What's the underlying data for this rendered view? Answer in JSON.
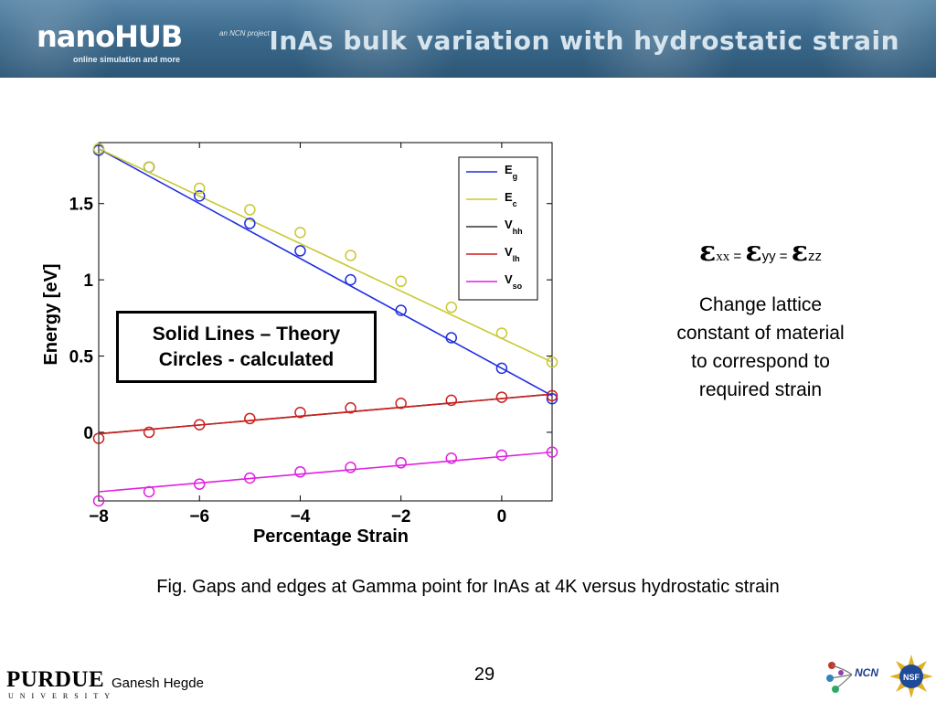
{
  "header": {
    "logo_main": "nanoHUB",
    "logo_tagline": "online simulation and more",
    "logo_partner": "an NCN project",
    "title": "InAs bulk variation with hydrostatic strain"
  },
  "chart_data": {
    "type": "line",
    "xlabel": "Percentage Strain",
    "ylabel": "Energy [eV]",
    "xlim": [
      -8,
      1
    ],
    "ylim": [
      -0.45,
      1.9
    ],
    "xticks": [
      -8,
      -6,
      -4,
      -2,
      0
    ],
    "xtick_labels": [
      "−8",
      "−6",
      "−4",
      "−2",
      "0"
    ],
    "yticks": [
      0,
      0.5,
      1,
      1.5
    ],
    "ytick_labels": [
      "0",
      "0.5",
      "1",
      "1.5"
    ],
    "grid": false,
    "legend_position": "top-right",
    "series": [
      {
        "name": "E",
        "sub": "g",
        "color": "#1f2ee0",
        "theory": [
          [
            -8,
            1.86
          ],
          [
            1,
            0.24
          ]
        ],
        "calculated": {
          "x": [
            -8,
            -7,
            -6,
            -5,
            -4,
            -3,
            -2,
            -1,
            0,
            1
          ],
          "y": [
            1.85,
            1.74,
            1.55,
            1.37,
            1.19,
            1.0,
            0.8,
            0.62,
            0.42,
            0.22
          ]
        }
      },
      {
        "name": "E",
        "sub": "c",
        "color": "#c8c832",
        "theory": [
          [
            -8,
            1.86
          ],
          [
            1,
            0.46
          ]
        ],
        "calculated": {
          "x": [
            -8,
            -7,
            -6,
            -5,
            -4,
            -3,
            -2,
            -1,
            0,
            1
          ],
          "y": [
            1.86,
            1.74,
            1.6,
            1.46,
            1.31,
            1.16,
            0.99,
            0.82,
            0.65,
            0.46
          ]
        }
      },
      {
        "name": "V",
        "sub": "hh",
        "color": "#333333",
        "theory": [
          [
            -8,
            -0.01
          ],
          [
            1,
            0.25
          ]
        ],
        "calculated": {
          "x": [],
          "y": []
        }
      },
      {
        "name": "V",
        "sub": "lh",
        "color": "#cc1f1f",
        "theory": [
          [
            -8,
            -0.01
          ],
          [
            1,
            0.25
          ]
        ],
        "calculated": {
          "x": [
            -8,
            -7,
            -6,
            -5,
            -4,
            -3,
            -2,
            -1,
            0,
            1
          ],
          "y": [
            -0.04,
            0.0,
            0.05,
            0.09,
            0.13,
            0.16,
            0.19,
            0.21,
            0.23,
            0.24
          ]
        }
      },
      {
        "name": "V",
        "sub": "so",
        "color": "#e020e0",
        "theory": [
          [
            -8,
            -0.39
          ],
          [
            1,
            -0.13
          ]
        ],
        "calculated": {
          "x": [
            -8,
            -7,
            -6,
            -5,
            -4,
            -3,
            -2,
            -1,
            0,
            1
          ],
          "y": [
            -0.45,
            -0.39,
            -0.34,
            -0.3,
            -0.26,
            -0.23,
            -0.2,
            -0.17,
            -0.15,
            -0.13
          ]
        }
      }
    ]
  },
  "annotation_box": {
    "line1": "Solid Lines – Theory",
    "line2": "Circles - calculated"
  },
  "strain_equation": {
    "epsilon": "ε",
    "xx": "xx",
    "yy": "yy",
    "zz": "zz",
    "equals": " = "
  },
  "description": {
    "line1": "Change lattice",
    "line2": "constant of material",
    "line3": "to correspond to",
    "line4": "required strain"
  },
  "caption": "Fig. Gaps and edges at Gamma point for InAs at 4K versus hydrostatic strain",
  "footer": {
    "university": "PURDUE",
    "university_sub": "UNIVERSITY",
    "author": "Ganesh Hegde",
    "page_number": "29",
    "ncn_label": "NCN",
    "nsf_label": "NSF"
  }
}
